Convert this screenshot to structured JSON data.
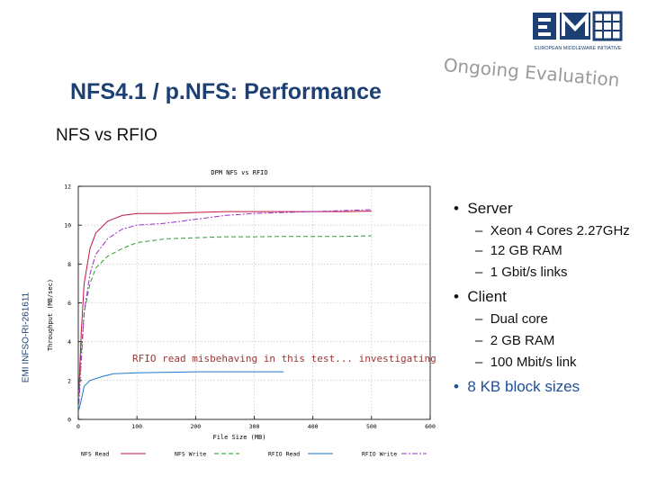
{
  "header": {
    "title": "NFS4.1 / p.NFS: Performance",
    "subtitle": "NFS vs RFIO",
    "ongoing": "Ongoing Evaluation",
    "logo_caption": "EUROPEAN MIDDLEWARE INITIATIVE",
    "sidebar_label": "EMI INFSO-RI-261611"
  },
  "bullets": {
    "server": "Server",
    "server_items": [
      "Xeon 4 Cores 2.27GHz",
      "12 GB RAM",
      "1 Gbit/s links"
    ],
    "client": "Client",
    "client_items": [
      "Dual core",
      "2 GB RAM",
      "100 Mbit/s link"
    ],
    "block": "8 KB block sizes"
  },
  "chart_data": {
    "type": "line",
    "title": "DPM NFS vs RFIO",
    "xlabel": "File Size (MB)",
    "ylabel": "Throughput (MB/sec)",
    "xlim": [
      0,
      600
    ],
    "ylim": [
      0,
      12
    ],
    "xticks": [
      0,
      100,
      200,
      300,
      400,
      500,
      600
    ],
    "yticks": [
      0,
      2,
      4,
      6,
      8,
      10,
      12
    ],
    "grid": true,
    "legend_position": "bottom",
    "annotation": "RFIO read misbehaving in this test... investigating",
    "series": [
      {
        "name": "NFS Read",
        "color": "#c0143c",
        "points": [
          [
            1,
            1.5
          ],
          [
            5,
            4.5
          ],
          [
            10,
            7
          ],
          [
            20,
            8.8
          ],
          [
            30,
            9.6
          ],
          [
            50,
            10.2
          ],
          [
            75,
            10.5
          ],
          [
            100,
            10.6
          ],
          [
            150,
            10.6
          ],
          [
            200,
            10.65
          ],
          [
            250,
            10.7
          ],
          [
            300,
            10.7
          ],
          [
            350,
            10.7
          ],
          [
            400,
            10.7
          ],
          [
            450,
            10.7
          ],
          [
            500,
            10.72
          ]
        ]
      },
      {
        "name": "NFS Write",
        "color": "#2aa02a",
        "points": [
          [
            1,
            1.2
          ],
          [
            5,
            3.5
          ],
          [
            10,
            5.5
          ],
          [
            20,
            7
          ],
          [
            30,
            7.8
          ],
          [
            50,
            8.4
          ],
          [
            75,
            8.8
          ],
          [
            100,
            9.1
          ],
          [
            150,
            9.3
          ],
          [
            200,
            9.35
          ],
          [
            250,
            9.4
          ],
          [
            300,
            9.4
          ],
          [
            350,
            9.42
          ],
          [
            400,
            9.42
          ],
          [
            450,
            9.42
          ],
          [
            500,
            9.45
          ]
        ]
      },
      {
        "name": "RFIO Read",
        "color": "#1f78c8",
        "points": [
          [
            1,
            0.5
          ],
          [
            5,
            1
          ],
          [
            10,
            1.7
          ],
          [
            20,
            2
          ],
          [
            40,
            2.2
          ],
          [
            60,
            2.35
          ],
          [
            100,
            2.4
          ],
          [
            200,
            2.45
          ],
          [
            300,
            2.45
          ],
          [
            350,
            2.45
          ]
        ]
      },
      {
        "name": "RFIO Write",
        "color": "#9b2fc8",
        "points": [
          [
            1,
            0.8
          ],
          [
            5,
            3
          ],
          [
            10,
            5.5
          ],
          [
            20,
            7.5
          ],
          [
            30,
            8.5
          ],
          [
            50,
            9.3
          ],
          [
            75,
            9.8
          ],
          [
            100,
            10
          ],
          [
            150,
            10.1
          ],
          [
            200,
            10.3
          ],
          [
            250,
            10.5
          ],
          [
            300,
            10.6
          ],
          [
            350,
            10.65
          ],
          [
            400,
            10.7
          ],
          [
            450,
            10.75
          ],
          [
            500,
            10.8
          ]
        ]
      }
    ]
  }
}
